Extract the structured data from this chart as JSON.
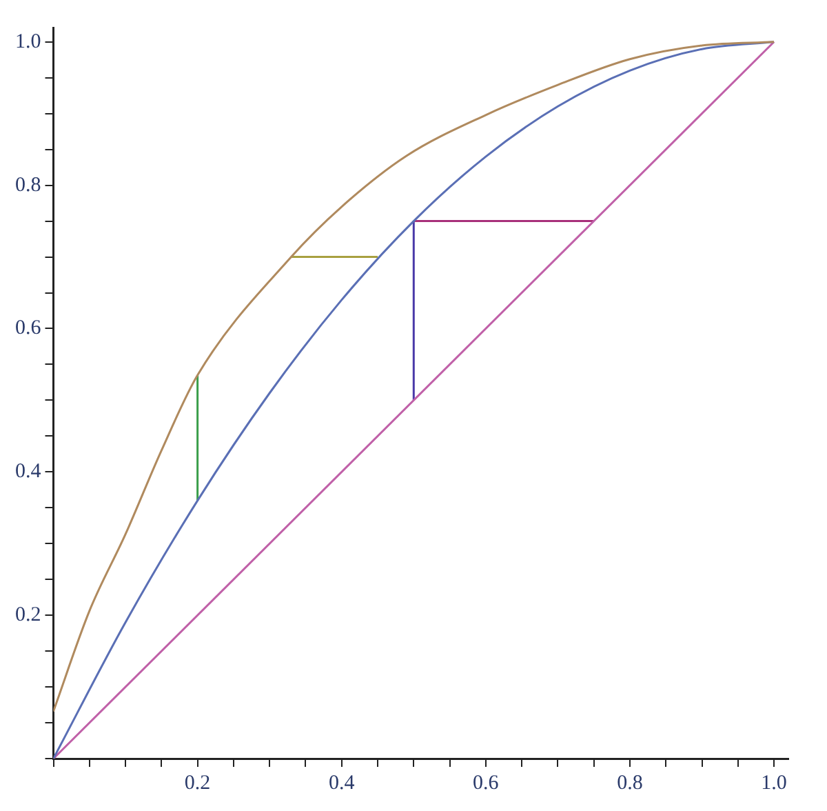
{
  "chart_data": {
    "type": "line",
    "xlim": [
      0,
      1.02
    ],
    "ylim": [
      0,
      1.02
    ],
    "xticks": [
      {
        "value": 0,
        "label": null
      },
      {
        "value": 0.05,
        "label": null
      },
      {
        "value": 0.1,
        "label": null
      },
      {
        "value": 0.15,
        "label": null
      },
      {
        "value": 0.2,
        "label": "0.2"
      },
      {
        "value": 0.25,
        "label": null
      },
      {
        "value": 0.3,
        "label": null
      },
      {
        "value": 0.35,
        "label": null
      },
      {
        "value": 0.4,
        "label": "0.4"
      },
      {
        "value": 0.45,
        "label": null
      },
      {
        "value": 0.5,
        "label": null
      },
      {
        "value": 0.55,
        "label": null
      },
      {
        "value": 0.6,
        "label": "0.6"
      },
      {
        "value": 0.65,
        "label": null
      },
      {
        "value": 0.7,
        "label": null
      },
      {
        "value": 0.75,
        "label": null
      },
      {
        "value": 0.8,
        "label": "0.8"
      },
      {
        "value": 0.85,
        "label": null
      },
      {
        "value": 0.9,
        "label": null
      },
      {
        "value": 0.95,
        "label": null
      },
      {
        "value": 1,
        "label": "1.0"
      }
    ],
    "yticks": [
      {
        "value": 0,
        "label": null
      },
      {
        "value": 0.05,
        "label": null
      },
      {
        "value": 0.1,
        "label": null
      },
      {
        "value": 0.15,
        "label": null
      },
      {
        "value": 0.2,
        "label": "0.2"
      },
      {
        "value": 0.25,
        "label": null
      },
      {
        "value": 0.3,
        "label": null
      },
      {
        "value": 0.35,
        "label": null
      },
      {
        "value": 0.4,
        "label": "0.4"
      },
      {
        "value": 0.45,
        "label": null
      },
      {
        "value": 0.5,
        "label": null
      },
      {
        "value": 0.55,
        "label": null
      },
      {
        "value": 0.6,
        "label": "0.6"
      },
      {
        "value": 0.65,
        "label": null
      },
      {
        "value": 0.7,
        "label": null
      },
      {
        "value": 0.75,
        "label": null
      },
      {
        "value": 0.8,
        "label": "0.8"
      },
      {
        "value": 0.85,
        "label": null
      },
      {
        "value": 0.9,
        "label": null
      },
      {
        "value": 0.95,
        "label": null
      },
      {
        "value": 1,
        "label": "1.0"
      }
    ],
    "grid": false,
    "legend": false,
    "marker": "none",
    "line_style": "solid",
    "series": [
      {
        "color": "#b08a5e",
        "x": [
          0,
          0.05,
          0.1,
          0.15,
          0.2,
          0.33,
          0.4,
          0.49,
          0.6,
          0.7,
          0.8,
          0.9,
          1
        ],
        "values": [
          0.066,
          0.206,
          0.313,
          0.43,
          0.535,
          0.7,
          0.77,
          0.841,
          0.898,
          0.94,
          0.976,
          0.995,
          1
        ]
      },
      {
        "color": "#5a6fb5",
        "x": [
          0,
          0.1,
          0.2,
          0.3,
          0.4,
          0.5,
          0.6,
          0.7,
          0.8,
          0.9,
          1
        ],
        "values": [
          0,
          0.19,
          0.36,
          0.51,
          0.64,
          0.75,
          0.84,
          0.91,
          0.96,
          0.99,
          1
        ]
      },
      {
        "color": "#c060a8",
        "x": [
          0,
          1
        ],
        "values": [
          0,
          1
        ]
      },
      {
        "color": "#3a9e4a",
        "x": [
          0.2,
          0.2
        ],
        "values": [
          0.36,
          0.535
        ]
      },
      {
        "color": "#a8a040",
        "x": [
          0.33,
          0.45
        ],
        "values": [
          0.7,
          0.7
        ]
      },
      {
        "color": "#4a3aa8",
        "x": [
          0.5,
          0.5
        ],
        "values": [
          0.5,
          0.75
        ]
      },
      {
        "color": "#a8307a",
        "x": [
          0.5,
          0.75
        ],
        "values": [
          0.75,
          0.75
        ]
      }
    ]
  }
}
